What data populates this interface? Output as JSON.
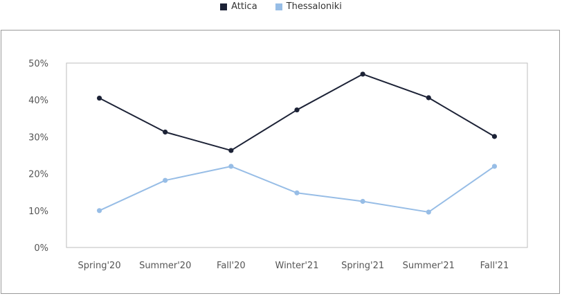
{
  "chart_data": {
    "type": "line",
    "categories": [
      "Spring'20",
      "Summer'20",
      "Fall'20",
      "Winter'21",
      "Spring'21",
      "Summer'21",
      "Fall'21"
    ],
    "series": [
      {
        "name": "Attica",
        "color": "#1c2236",
        "values": [
          40.5,
          31.3,
          26.3,
          37.3,
          47.0,
          40.6,
          30.1
        ]
      },
      {
        "name": "Thessaloniki",
        "color": "#97bde6",
        "values": [
          10.0,
          18.2,
          22.0,
          14.8,
          12.5,
          9.6,
          22.0
        ]
      }
    ],
    "yticks": [
      "0%",
      "10%",
      "20%",
      "30%",
      "40%",
      "50%"
    ],
    "ylim": [
      0,
      50
    ],
    "legend_position": "top-center",
    "grid": false
  }
}
